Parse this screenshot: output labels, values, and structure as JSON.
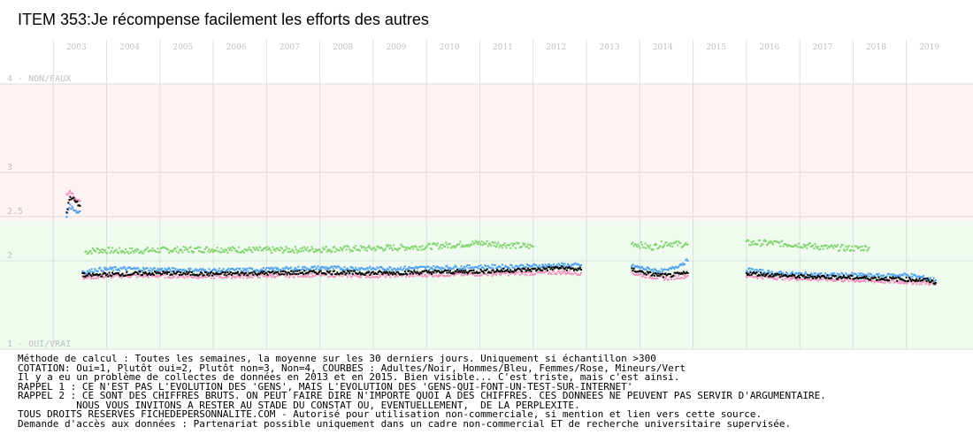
{
  "title": "ITEM 353:Je récompense facilement les efforts des autres",
  "colors": {
    "zone_non": "#fdf3f3",
    "zone_oui": "#eefbee",
    "grid": "#dddddd",
    "axis_text": "#bfbfbf",
    "adultes": "#000000",
    "hommes": "#4d9ff0",
    "femmes": "#f38fc0",
    "mineurs": "#7ed36b"
  },
  "chart_data": {
    "type": "scatter",
    "title": "ITEM 353:Je récompense facilement les efforts des autres",
    "x_ticks": [
      "2003",
      "2004",
      "2005",
      "2006",
      "2007",
      "2008",
      "2009",
      "2010",
      "2011",
      "2012",
      "2013",
      "2014",
      "2015",
      "2016",
      "2017",
      "2018",
      "2019"
    ],
    "y_ticks": [
      {
        "value": 4,
        "label": "4 - NON/FAUX"
      },
      {
        "value": 3,
        "label": "3"
      },
      {
        "value": 2.5,
        "label": "2.5"
      },
      {
        "value": 2,
        "label": "2"
      },
      {
        "value": 1,
        "label": "1 - OUI/VRAI"
      }
    ],
    "xlim": [
      2002.0,
      2020.25
    ],
    "ylim": [
      1,
      4
    ],
    "zones": [
      {
        "from": 2.45,
        "to": 4,
        "label": "NON"
      },
      {
        "from": 1,
        "to": 2.45,
        "label": "OUI"
      }
    ],
    "series": [
      {
        "name": "Adultes",
        "color": "#000000",
        "segments": [
          {
            "x": [
              2003.25,
              2003.3,
              2003.35,
              2003.4,
              2003.45,
              2003.5
            ],
            "y": [
              2.55,
              2.7,
              2.72,
              2.68,
              2.65,
              2.62
            ]
          },
          {
            "x": [
              2003.55,
              2003.6,
              2003.8,
              2004.3,
              2005.0,
              2006.0,
              2007.0,
              2008.0,
              2009.0,
              2010.0,
              2011.0,
              2012.0,
              2012.5,
              2012.9
            ],
            "y": [
              1.85,
              1.83,
              1.84,
              1.85,
              1.86,
              1.85,
              1.86,
              1.87,
              1.86,
              1.87,
              1.88,
              1.9,
              1.92,
              1.9
            ]
          },
          {
            "x": [
              2013.85,
              2014.2,
              2014.5,
              2014.9
            ],
            "y": [
              1.9,
              1.85,
              1.83,
              1.86
            ]
          },
          {
            "x": [
              2016.0,
              2016.5,
              2017.0,
              2017.5,
              2018.0,
              2018.5,
              2019.0,
              2019.4,
              2019.55
            ],
            "y": [
              1.86,
              1.84,
              1.82,
              1.82,
              1.81,
              1.8,
              1.79,
              1.78,
              1.75
            ]
          }
        ]
      },
      {
        "name": "Hommes",
        "color": "#4d9ff0",
        "segments": [
          {
            "x": [
              2003.25,
              2003.3,
              2003.35,
              2003.4,
              2003.45,
              2003.5
            ],
            "y": [
              2.5,
              2.62,
              2.6,
              2.58,
              2.55,
              2.56
            ]
          },
          {
            "x": [
              2003.55,
              2003.6,
              2003.8,
              2004.3,
              2005.0,
              2006.0,
              2007.0,
              2008.0,
              2009.0,
              2010.0,
              2011.0,
              2012.0,
              2012.5,
              2012.9
            ],
            "y": [
              1.88,
              1.87,
              1.9,
              1.91,
              1.9,
              1.89,
              1.9,
              1.92,
              1.91,
              1.92,
              1.93,
              1.94,
              1.95,
              1.95
            ]
          },
          {
            "x": [
              2013.85,
              2014.2,
              2014.5,
              2014.9
            ],
            "y": [
              1.94,
              1.9,
              1.88,
              2.0
            ]
          },
          {
            "x": [
              2016.0,
              2016.5,
              2017.0,
              2017.5,
              2018.0,
              2018.5,
              2019.0,
              2019.4,
              2019.55
            ],
            "y": [
              1.9,
              1.86,
              1.85,
              1.84,
              1.84,
              1.83,
              1.84,
              1.8,
              1.78
            ]
          }
        ]
      },
      {
        "name": "Femmes",
        "color": "#f38fc0",
        "segments": [
          {
            "x": [
              2003.25,
              2003.3,
              2003.35,
              2003.4,
              2003.45,
              2003.5
            ],
            "y": [
              2.75,
              2.78,
              2.76,
              2.72,
              2.7,
              2.68
            ]
          },
          {
            "x": [
              2003.55,
              2003.6,
              2003.8,
              2004.3,
              2005.0,
              2006.0,
              2007.0,
              2008.0,
              2009.0,
              2010.0,
              2011.0,
              2012.0,
              2012.5,
              2012.9
            ],
            "y": [
              1.82,
              1.81,
              1.82,
              1.83,
              1.83,
              1.82,
              1.83,
              1.84,
              1.83,
              1.84,
              1.85,
              1.86,
              1.87,
              1.86
            ]
          },
          {
            "x": [
              2013.85,
              2014.2,
              2014.5,
              2014.9
            ],
            "y": [
              1.86,
              1.82,
              1.8,
              1.83
            ]
          },
          {
            "x": [
              2016.0,
              2016.5,
              2017.0,
              2017.5,
              2018.0,
              2018.5,
              2019.0,
              2019.4,
              2019.55
            ],
            "y": [
              1.83,
              1.81,
              1.8,
              1.79,
              1.78,
              1.77,
              1.76,
              1.75,
              1.73
            ]
          }
        ]
      },
      {
        "name": "Mineurs",
        "color": "#7ed36b",
        "segments": [
          {
            "x": [
              2003.6,
              2003.8,
              2004.3,
              2005.0,
              2006.0,
              2007.0,
              2008.0,
              2009.0,
              2010.0,
              2010.5,
              2011.0,
              2011.5,
              2012.0
            ],
            "y": [
              2.1,
              2.12,
              2.11,
              2.12,
              2.13,
              2.12,
              2.13,
              2.14,
              2.16,
              2.18,
              2.2,
              2.18,
              2.16
            ]
          },
          {
            "x": [
              2013.85,
              2014.2,
              2014.5,
              2014.9
            ],
            "y": [
              2.2,
              2.15,
              2.2,
              2.18
            ]
          },
          {
            "x": [
              2016.0,
              2016.5,
              2017.0,
              2017.5,
              2018.0,
              2018.3
            ],
            "y": [
              2.2,
              2.2,
              2.18,
              2.15,
              2.14,
              2.15
            ]
          }
        ]
      }
    ]
  },
  "notes": [
    "Méthode de calcul : Toutes les semaines, la moyenne sur les 30 derniers jours. Uniquement si échantillon >300",
    "COTATION: Oui=1, Plutôt oui=2, Plutôt non=3, Non=4, COURBES : Adultes/Noir, Hommes/Bleu, Femmes/Rose, Mineurs/Vert",
    "Il y a eu un problème de collectes de données en 2013 et en 2015. Bien visible... C'est triste, mais c'est ainsi.",
    "RAPPEL 1 : CE N'EST PAS L'EVOLUTION DES 'GENS', MAIS L'EVOLUTION DES 'GENS-QUI-FONT-UN-TEST-SUR-INTERNET'",
    "RAPPEL 2 : CE SONT DES CHIFFRES BRUTS. ON PEUT FAIRE DIRE N'IMPORTE QUOI A DES CHIFFRES. CES DONNEES NE PEUVENT PAS SERVIR D'ARGUMENTAIRE.",
    "          NOUS VOUS INVITONS A RESTER AU STADE DU CONSTAT OU, EVENTUELLEMENT,  DE LA PERPLEXITE.",
    "TOUS DROITS RESERVES FICHEDEPERSONNALITE.COM - Autorisé pour utilisation non-commerciale, si mention et lien vers cette source.",
    "Demande d'accès aux données : Partenariat possible uniquement dans un cadre non-commercial ET de recherche universitaire supervisée."
  ]
}
